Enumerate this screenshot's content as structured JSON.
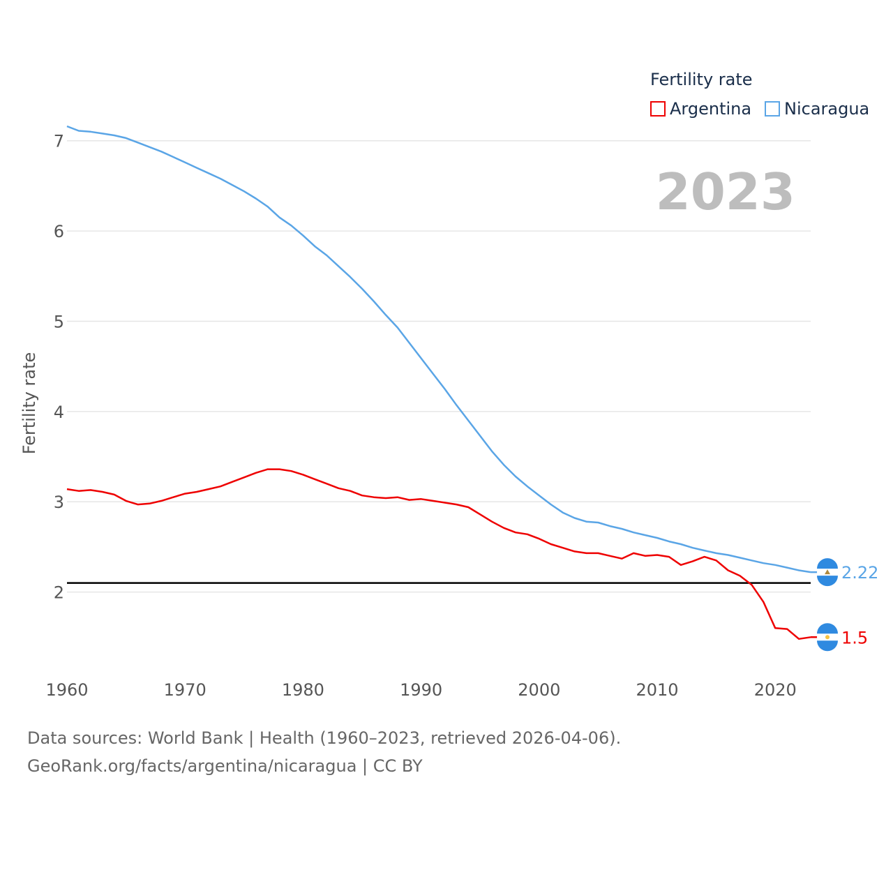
{
  "legend": {
    "title": "Fertility rate",
    "items": [
      {
        "label": "Argentina",
        "color": "#ee0000"
      },
      {
        "label": "Nicaragua",
        "color": "#5aa5e6"
      }
    ]
  },
  "year_label": "2023",
  "footer": {
    "line1": "Data sources: World Bank | Health (1960–2023, retrieved 2026-04-06).",
    "line2": "GeoRank.org/facts/argentina/nicaragua | CC BY"
  },
  "chart_data": {
    "type": "line",
    "title": "",
    "xlabel": "",
    "ylabel": "Fertility rate",
    "xlim": [
      1960,
      2023
    ],
    "ylim": [
      1.1,
      7.4
    ],
    "xticks": [
      1960,
      1970,
      1980,
      1990,
      2000,
      2010,
      2020
    ],
    "yticks": [
      2,
      3,
      4,
      5,
      6,
      7
    ],
    "grid": true,
    "reference_line": {
      "y": 2.1,
      "color": "#000000"
    },
    "x": [
      1960,
      1961,
      1962,
      1963,
      1964,
      1965,
      1966,
      1967,
      1968,
      1969,
      1970,
      1971,
      1972,
      1973,
      1974,
      1975,
      1976,
      1977,
      1978,
      1979,
      1980,
      1981,
      1982,
      1983,
      1984,
      1985,
      1986,
      1987,
      1988,
      1989,
      1990,
      1991,
      1992,
      1993,
      1994,
      1995,
      1996,
      1997,
      1998,
      1999,
      2000,
      2001,
      2002,
      2003,
      2004,
      2005,
      2006,
      2007,
      2008,
      2009,
      2010,
      2011,
      2012,
      2013,
      2014,
      2015,
      2016,
      2017,
      2018,
      2019,
      2020,
      2021,
      2022,
      2023
    ],
    "series": [
      {
        "name": "Argentina",
        "color": "#ee0000",
        "end_label": "1.5",
        "values": [
          3.14,
          3.12,
          3.13,
          3.11,
          3.08,
          3.01,
          2.97,
          2.98,
          3.01,
          3.05,
          3.09,
          3.11,
          3.14,
          3.17,
          3.22,
          3.27,
          3.32,
          3.36,
          3.36,
          3.34,
          3.3,
          3.25,
          3.2,
          3.15,
          3.12,
          3.07,
          3.05,
          3.04,
          3.05,
          3.02,
          3.03,
          3.01,
          2.99,
          2.97,
          2.94,
          2.86,
          2.78,
          2.71,
          2.66,
          2.64,
          2.59,
          2.53,
          2.49,
          2.45,
          2.43,
          2.43,
          2.4,
          2.37,
          2.43,
          2.4,
          2.41,
          2.39,
          2.3,
          2.34,
          2.39,
          2.35,
          2.24,
          2.18,
          2.08,
          1.89,
          1.6,
          1.59,
          1.48,
          1.5
        ]
      },
      {
        "name": "Nicaragua",
        "color": "#5aa5e6",
        "end_label": "2.22",
        "values": [
          7.16,
          7.11,
          7.1,
          7.08,
          7.06,
          7.03,
          6.98,
          6.93,
          6.88,
          6.82,
          6.76,
          6.7,
          6.64,
          6.58,
          6.51,
          6.44,
          6.36,
          6.27,
          6.15,
          6.06,
          5.95,
          5.83,
          5.73,
          5.61,
          5.49,
          5.36,
          5.22,
          5.07,
          4.93,
          4.76,
          4.59,
          4.42,
          4.25,
          4.07,
          3.9,
          3.73,
          3.56,
          3.41,
          3.28,
          3.17,
          3.07,
          2.97,
          2.88,
          2.82,
          2.78,
          2.77,
          2.73,
          2.7,
          2.66,
          2.63,
          2.6,
          2.56,
          2.53,
          2.49,
          2.46,
          2.43,
          2.41,
          2.38,
          2.35,
          2.32,
          2.3,
          2.27,
          2.24,
          2.22
        ]
      }
    ]
  }
}
